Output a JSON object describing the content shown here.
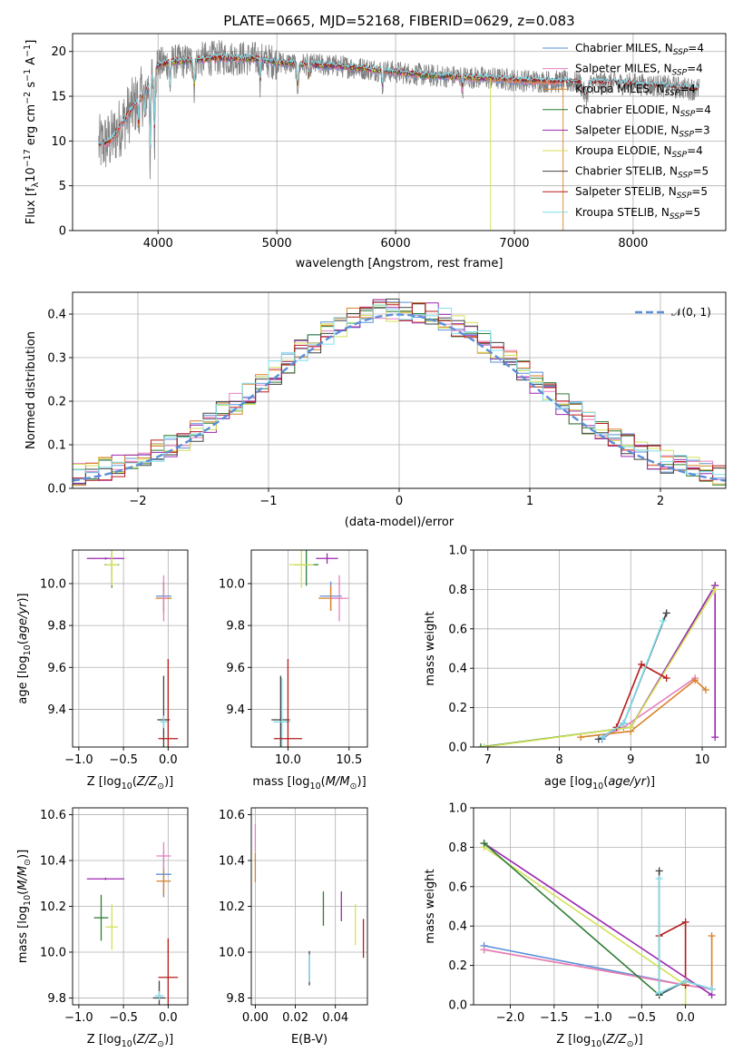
{
  "title": "PLATE=0665, MJD=52168, FIBERID=0629, z=0.083",
  "colors": {
    "chabrier_miles": "#5b8fd9",
    "salpeter_miles": "#e87fc0",
    "kroupa_miles": "#d9822b",
    "chabrier_elodie": "#2e7d32",
    "salpeter_elodie": "#9c27b0",
    "kroupa_elodie": "#d4e157",
    "chabrier_stelib": "#424242",
    "salpeter_stelib": "#b71c1c",
    "kroupa_stelib": "#80deea",
    "data": "#808080",
    "normal_curve": "#5b8fd9"
  },
  "chart_data": [
    {
      "type": "line",
      "title": "PLATE=0665, MJD=52168, FIBERID=0629, z=0.083",
      "xlabel": "wavelength [Angstrom, rest frame]",
      "ylabel_parts": [
        "Flux [f",
        "λ",
        "10",
        "−17",
        " erg cm",
        "−2",
        " s",
        "−1",
        " A",
        "−1",
        "]"
      ],
      "xlim": [
        3280,
        8780
      ],
      "ylim": [
        0,
        22
      ],
      "xticks": [
        "4000",
        "5000",
        "6000",
        "7000",
        "8000"
      ],
      "yticks": [
        "0",
        "5",
        "10",
        "15",
        "20"
      ],
      "legend_position": "top-right",
      "legend": [
        {
          "name": "Chabrier MILES, N",
          "sub": "SSP",
          "suffix": "=4"
        },
        {
          "name": "Salpeter MILES, N",
          "sub": "SSP",
          "suffix": "=4"
        },
        {
          "name": "Kroupa MILES, N",
          "sub": "SSP",
          "suffix": "=4"
        },
        {
          "name": "Chabrier ELODIE, N",
          "sub": "SSP",
          "suffix": "=4"
        },
        {
          "name": "Salpeter ELODIE, N",
          "sub": "SSP",
          "suffix": "=3"
        },
        {
          "name": "Kroupa ELODIE, N",
          "sub": "SSP",
          "suffix": "=4"
        },
        {
          "name": "Chabrier STELIB, N",
          "sub": "SSP",
          "suffix": "=5"
        },
        {
          "name": "Salpeter STELIB, N",
          "sub": "SSP",
          "suffix": "=5"
        },
        {
          "name": "Kroupa STELIB, N",
          "sub": "SSP",
          "suffix": "=5"
        }
      ],
      "continuum": {
        "wavelength": [
          3500,
          3600,
          3700,
          3800,
          3900,
          4000,
          4100,
          4300,
          4500,
          4800,
          5000,
          5200,
          5500,
          5800,
          6000,
          6300,
          6500,
          6800,
          7000,
          7400,
          7800,
          8200,
          8500
        ],
        "flux": [
          9.5,
          10.0,
          12.0,
          14.0,
          15.5,
          18.5,
          18.8,
          19.0,
          19.3,
          19.2,
          18.8,
          18.6,
          18.4,
          18.0,
          17.7,
          17.3,
          17.2,
          17.0,
          16.8,
          16.6,
          16.5,
          16.2,
          15.8
        ]
      }
    },
    {
      "type": "line",
      "xlabel": "(data-model)/error",
      "ylabel": "Normed distribution",
      "xlim": [
        -2.5,
        2.5
      ],
      "ylim": [
        0,
        0.45
      ],
      "xticks": [
        "−2",
        "−1",
        "0",
        "1",
        "2"
      ],
      "yticks": [
        "0.0",
        "0.1",
        "0.2",
        "0.3",
        "0.4"
      ],
      "legend_position": "top-right",
      "legend_label": "𝒩(0, 1)",
      "bin_width": 0.1,
      "series": [
        {
          "label": "𝒩(0, 1)",
          "mean": 0,
          "sigma": 1
        }
      ]
    },
    {
      "type": "scatter",
      "xlabel": "Z [log10(Z/Z⊙)]",
      "ylabel": "age  [log10(age/yr)]",
      "xlim": [
        -1.07,
        0.22
      ],
      "ylim": [
        9.22,
        10.16
      ],
      "xticks": [
        "−1.0",
        "−0.5",
        "0.0"
      ],
      "yticks": [
        "9.4",
        "9.6",
        "9.8",
        "10.0"
      ],
      "points": [
        {
          "s": "salpeter_elodie",
          "x": -0.7,
          "y": 10.12,
          "dx": 0.42,
          "dy": 0.01
        },
        {
          "s": "chabrier_elodie",
          "x": -0.63,
          "y": 10.09,
          "dx": 0.16,
          "dy": 0.22
        },
        {
          "s": "kroupa_elodie",
          "x": -0.63,
          "y": 10.09,
          "dx": 0.14,
          "dy": 0.2
        },
        {
          "s": "chabrier_miles",
          "x": -0.05,
          "y": 9.94,
          "dx": 0.17,
          "dy": 0.14
        },
        {
          "s": "kroupa_miles",
          "x": -0.05,
          "y": 9.93,
          "dx": 0.18,
          "dy": 0.15
        },
        {
          "s": "salpeter_miles",
          "x": -0.05,
          "y": 9.93,
          "dx": 0.05,
          "dy": 0.22
        },
        {
          "s": "chabrier_stelib",
          "x": -0.05,
          "y": 9.35,
          "dx": 0.14,
          "dy": 0.42
        },
        {
          "s": "kroupa_stelib",
          "x": -0.05,
          "y": 9.34,
          "dx": 0.08,
          "dy": 0.06
        },
        {
          "s": "salpeter_stelib",
          "x": 0.0,
          "y": 9.26,
          "dx": 0.22,
          "dy": 0.76
        }
      ]
    },
    {
      "type": "scatter",
      "xlabel": "mass [log10(M/M⊙)]",
      "ylabel": "",
      "xlim": [
        9.7,
        10.65
      ],
      "ylim": [
        9.22,
        10.16
      ],
      "xticks": [
        "10.0",
        "10.5"
      ],
      "yticks": [
        "9.4",
        "9.6",
        "9.8",
        "10.0"
      ],
      "points": [
        {
          "s": "salpeter_elodie",
          "x": 10.32,
          "y": 10.12,
          "dx": 0.18,
          "dy": 0.05
        },
        {
          "s": "chabrier_elodie",
          "x": 10.15,
          "y": 10.09,
          "dx": 0.2,
          "dy": 0.2
        },
        {
          "s": "kroupa_elodie",
          "x": 10.11,
          "y": 10.09,
          "dx": 0.2,
          "dy": 0.22
        },
        {
          "s": "chabrier_miles",
          "x": 10.35,
          "y": 9.94,
          "dx": 0.18,
          "dy": 0.14
        },
        {
          "s": "kroupa_miles",
          "x": 10.35,
          "y": 9.93,
          "dx": 0.2,
          "dy": 0.12
        },
        {
          "s": "salpeter_miles",
          "x": 10.42,
          "y": 9.93,
          "dx": 0.15,
          "dy": 0.22
        },
        {
          "s": "chabrier_stelib",
          "x": 9.94,
          "y": 9.35,
          "dx": 0.15,
          "dy": 0.42
        },
        {
          "s": "kroupa_stelib",
          "x": 9.95,
          "y": 9.34,
          "dx": 0.14,
          "dy": 0.42
        },
        {
          "s": "salpeter_stelib",
          "x": 10.0,
          "y": 9.26,
          "dx": 0.23,
          "dy": 0.76
        }
      ]
    },
    {
      "type": "line",
      "xlabel": "age  [log10(age/yr)]",
      "ylabel": "mass weight",
      "xlim": [
        6.8,
        10.33
      ],
      "ylim": [
        0,
        1.0
      ],
      "xticks": [
        "7",
        "8",
        "9",
        "10"
      ],
      "yticks": [
        "0.0",
        "0.2",
        "0.4",
        "0.6",
        "0.8",
        "1.0"
      ],
      "series": [
        {
          "s": "chabrier_miles",
          "x": [
            8.6,
            8.9,
            9.5
          ],
          "y": [
            0.04,
            0.12,
            0.68
          ]
        },
        {
          "s": "salpeter_miles",
          "x": [
            8.6,
            8.9,
            9.9
          ],
          "y": [
            0.05,
            0.1,
            0.35
          ]
        },
        {
          "s": "kroupa_miles",
          "x": [
            8.3,
            9.0,
            9.9,
            10.05
          ],
          "y": [
            0.05,
            0.08,
            0.34,
            0.29
          ]
        },
        {
          "s": "chabrier_elodie",
          "x": [
            6.9,
            9.0,
            10.18
          ],
          "y": [
            0.0,
            0.1,
            0.82
          ]
        },
        {
          "s": "salpeter_elodie",
          "x": [
            9.0,
            10.18,
            10.18
          ],
          "y": [
            0.1,
            0.82,
            0.05
          ]
        },
        {
          "s": "kroupa_elodie",
          "x": [
            6.95,
            9.0,
            10.18
          ],
          "y": [
            0.0,
            0.1,
            0.8
          ]
        },
        {
          "s": "chabrier_stelib",
          "x": [
            8.55,
            8.9,
            9.5
          ],
          "y": [
            0.04,
            0.12,
            0.68
          ]
        },
        {
          "s": "salpeter_stelib",
          "x": [
            8.8,
            9.15,
            9.5
          ],
          "y": [
            0.1,
            0.42,
            0.35
          ]
        },
        {
          "s": "kroupa_stelib",
          "x": [
            8.6,
            8.9,
            9.45
          ],
          "y": [
            0.05,
            0.12,
            0.64
          ]
        }
      ]
    },
    {
      "type": "scatter",
      "xlabel": "Z [log10(Z/Z⊙)]",
      "ylabel": "mass [log10(M/M⊙)]",
      "xlim": [
        -1.07,
        0.22
      ],
      "ylim": [
        9.77,
        10.63
      ],
      "xticks": [
        "−1.0",
        "−0.5",
        "0.0"
      ],
      "yticks": [
        "9.8",
        "10.0",
        "10.2",
        "10.4",
        "10.6"
      ],
      "points": [
        {
          "s": "salpeter_elodie",
          "x": -0.7,
          "y": 10.32,
          "dx": 0.42,
          "dy": 0.01
        },
        {
          "s": "chabrier_elodie",
          "x": -0.75,
          "y": 10.15,
          "dx": 0.16,
          "dy": 0.2
        },
        {
          "s": "kroupa_elodie",
          "x": -0.63,
          "y": 10.11,
          "dx": 0.14,
          "dy": 0.2
        },
        {
          "s": "chabrier_miles",
          "x": -0.05,
          "y": 10.34,
          "dx": 0.17,
          "dy": 0.2
        },
        {
          "s": "kroupa_miles",
          "x": -0.05,
          "y": 10.31,
          "dx": 0.16,
          "dy": 0.12
        },
        {
          "s": "salpeter_miles",
          "x": -0.05,
          "y": 10.42,
          "dx": 0.16,
          "dy": 0.12
        },
        {
          "s": "chabrier_stelib",
          "x": -0.1,
          "y": 9.8,
          "dx": 0.14,
          "dy": 0.15
        },
        {
          "s": "kroupa_stelib",
          "x": -0.1,
          "y": 9.81,
          "dx": 0.1,
          "dy": 0.04
        },
        {
          "s": "salpeter_stelib",
          "x": 0.0,
          "y": 9.89,
          "dx": 0.22,
          "dy": 0.34
        }
      ]
    },
    {
      "type": "scatter",
      "xlabel": "E(B-V)",
      "ylabel": "",
      "xlim": [
        -0.002,
        0.056
      ],
      "ylim": [
        9.77,
        10.63
      ],
      "xticks": [
        "0.00",
        "0.02",
        "0.04"
      ],
      "yticks": [
        "9.8",
        "10.0",
        "10.2",
        "10.4",
        "10.6"
      ],
      "points": [
        {
          "s": "salpeter_miles",
          "x": 0.0,
          "y": 10.5,
          "dy": 0.12
        },
        {
          "s": "kroupa_miles",
          "x": 0.0,
          "y": 10.37,
          "dy": 0.13
        },
        {
          "s": "chabrier_stelib",
          "x": 0.027,
          "y": 9.93,
          "dy": 0.15
        },
        {
          "s": "kroupa_stelib",
          "x": 0.027,
          "y": 9.93,
          "dy": 0.12
        },
        {
          "s": "chabrier_elodie",
          "x": 0.034,
          "y": 10.19,
          "dy": 0.15
        },
        {
          "s": "salpeter_elodie",
          "x": 0.043,
          "y": 10.2,
          "dy": 0.13
        },
        {
          "s": "kroupa_elodie",
          "x": 0.05,
          "y": 10.12,
          "dy": 0.18
        },
        {
          "s": "salpeter_stelib",
          "x": 0.054,
          "y": 10.06,
          "dy": 0.17
        }
      ]
    },
    {
      "type": "line",
      "xlabel": "Z [log10(Z/Z⊙)]",
      "ylabel": "mass weight",
      "xlim": [
        -2.42,
        0.46
      ],
      "ylim": [
        0,
        1.0
      ],
      "xticks": [
        "−2.0",
        "−1.5",
        "−1.0",
        "−0.5",
        "0.0"
      ],
      "yticks": [
        "0.0",
        "0.2",
        "0.4",
        "0.6",
        "0.8",
        "1.0"
      ],
      "series": [
        {
          "s": "chabrier_miles",
          "x": [
            -2.3,
            0.0,
            0.3
          ],
          "y": [
            0.3,
            0.1,
            0.08
          ]
        },
        {
          "s": "kroupa_miles",
          "x": [
            -2.3,
            0.0,
            0.3,
            0.3
          ],
          "y": [
            0.28,
            0.1,
            0.08,
            0.35
          ]
        },
        {
          "s": "salpeter_miles",
          "x": [
            -2.3,
            0.0,
            0.3
          ],
          "y": [
            0.28,
            0.1,
            0.08
          ]
        },
        {
          "s": "salpeter_elodie",
          "x": [
            -2.3,
            0.3
          ],
          "y": [
            0.82,
            0.05
          ]
        },
        {
          "s": "kroupa_elodie",
          "x": [
            -2.3,
            0.0,
            0.0
          ],
          "y": [
            0.8,
            0.1,
            0.0
          ]
        },
        {
          "s": "chabrier_elodie",
          "x": [
            -2.3,
            -0.3
          ],
          "y": [
            0.82,
            0.05
          ]
        },
        {
          "s": "chabrier_stelib",
          "x": [
            -0.3,
            -0.3,
            0.0,
            0.3
          ],
          "y": [
            0.68,
            0.05,
            0.12,
            0.08
          ]
        },
        {
          "s": "salpeter_stelib",
          "x": [
            -0.3,
            0.0,
            0.0
          ],
          "y": [
            0.35,
            0.42,
            0.1
          ]
        },
        {
          "s": "kroupa_stelib",
          "x": [
            -0.3,
            -0.3,
            0.0,
            0.3
          ],
          "y": [
            0.64,
            0.06,
            0.12,
            0.08
          ]
        }
      ]
    }
  ]
}
